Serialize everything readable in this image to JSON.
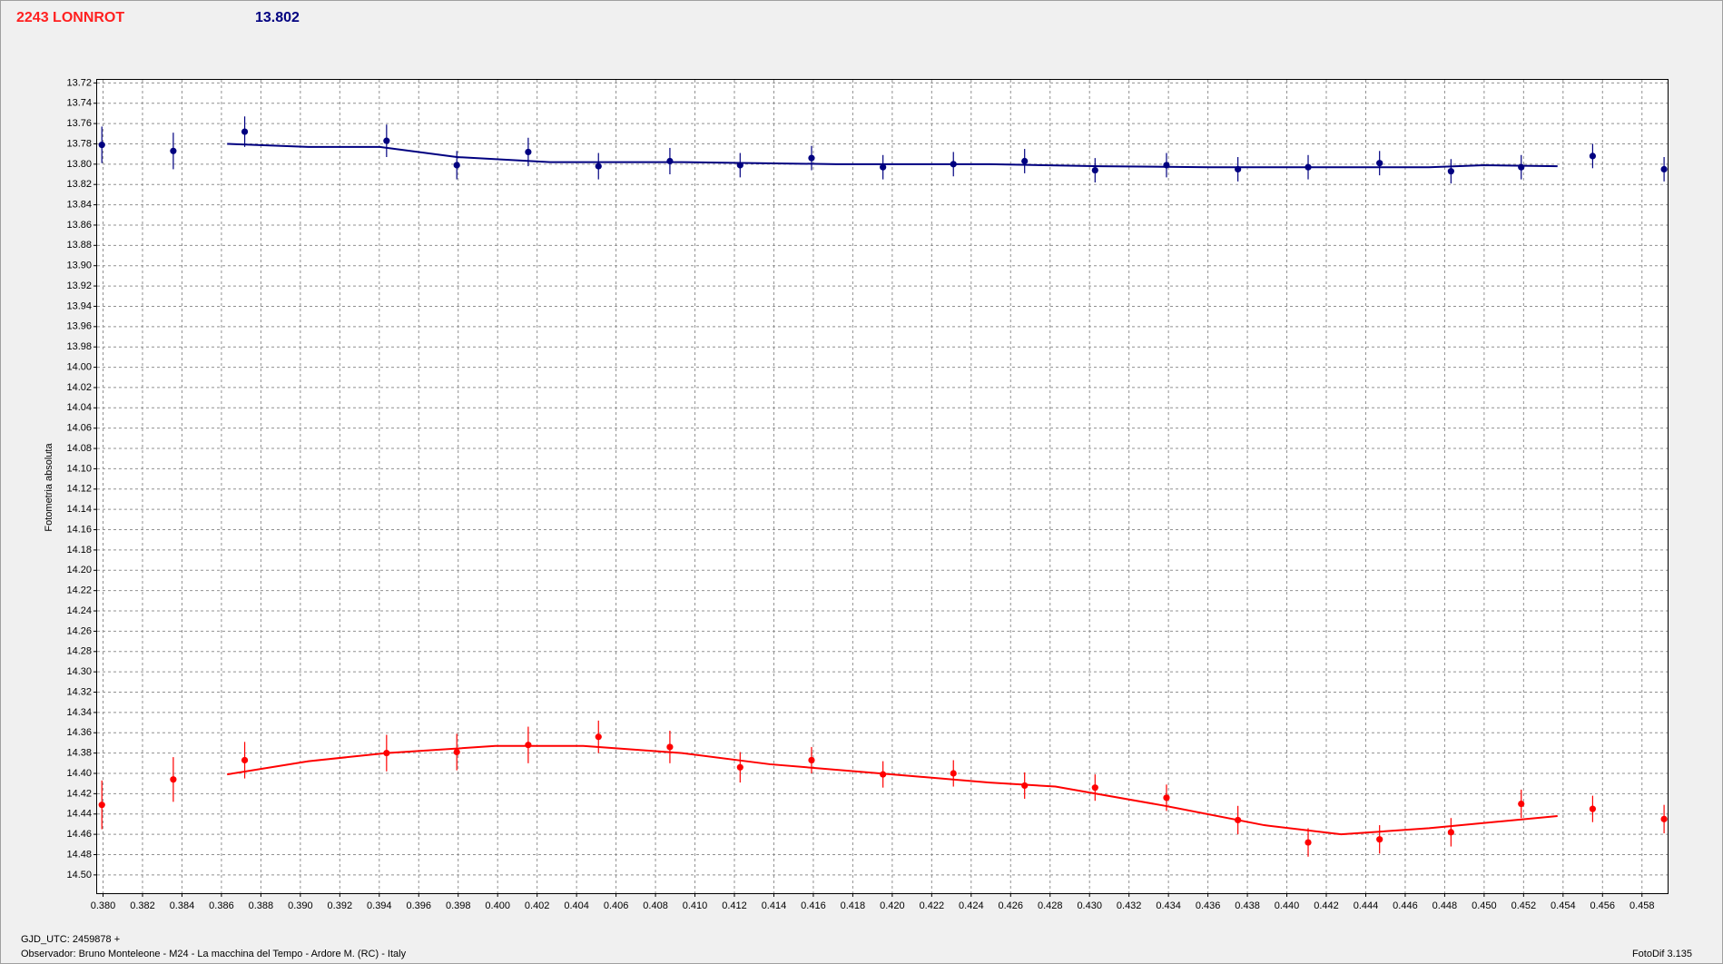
{
  "chart_data": {
    "type": "scatter",
    "title": "2243 LONNROT",
    "subtitle": "13.802",
    "ylabel": "Fotometria absoluta",
    "xlabel": "GJD_UTC: 2459878 +",
    "observer": "Observador: Bruno Monteleone - M24 - La macchina del Tempo - Ardore M. (RC) - Italy",
    "software": "FotoDif 3.135",
    "xlim": [
      0.3797,
      0.4593
    ],
    "ylim": [
      14.518,
      13.717
    ],
    "grid": true,
    "xticks": [
      {
        "value": 0.38,
        "label": "0.380"
      },
      0.382,
      0.384,
      0.386,
      0.388,
      {
        "value": 0.39,
        "label": "0.390"
      },
      0.392,
      0.394,
      0.396,
      0.398,
      {
        "value": 0.4,
        "label": "0.400"
      },
      0.402,
      0.404,
      0.406,
      0.408,
      {
        "value": 0.41,
        "label": "0.410"
      },
      0.412,
      0.414,
      0.416,
      0.418,
      {
        "value": 0.42,
        "label": "0.420"
      },
      0.422,
      0.424,
      0.426,
      0.428,
      {
        "value": 0.43,
        "label": "0.430"
      },
      0.432,
      0.434,
      0.436,
      0.438,
      {
        "value": 0.44,
        "label": "0.440"
      },
      0.442,
      0.444,
      0.446,
      0.448,
      {
        "value": 0.45,
        "label": "0.450"
      },
      0.452,
      0.454,
      0.456,
      0.458
    ],
    "yticks": [
      13.72,
      13.74,
      13.76,
      13.78,
      {
        "value": 13.8,
        "label": "13.80"
      },
      13.82,
      13.84,
      13.86,
      13.88,
      {
        "value": 13.9,
        "label": "13.90"
      },
      13.92,
      13.94,
      13.96,
      13.98,
      {
        "value": 14.0,
        "label": "14.00"
      },
      14.02,
      14.04,
      14.06,
      14.08,
      {
        "value": 14.1,
        "label": "14.10"
      },
      14.12,
      14.14,
      14.16,
      14.18,
      {
        "value": 14.2,
        "label": "14.20"
      },
      14.22,
      14.24,
      14.26,
      14.28,
      {
        "value": 14.3,
        "label": "14.30"
      },
      14.32,
      14.34,
      14.36,
      14.38,
      {
        "value": 14.4,
        "label": "14.40"
      },
      14.42,
      14.44,
      14.46,
      14.48,
      {
        "value": 14.5,
        "label": "14.50"
      }
    ],
    "series": [
      {
        "color": "#000080",
        "x": [
          0.37994,
          0.38356,
          0.38718,
          0.39437,
          0.39793,
          0.40155,
          0.40511,
          0.40873,
          0.41229,
          0.41591,
          0.41953,
          0.4231,
          0.42671,
          0.43028,
          0.4339,
          0.43752,
          0.44108,
          0.4447,
          0.44832,
          0.45188,
          0.4555,
          0.45912
        ],
        "values": [
          13.781,
          13.787,
          13.768,
          13.777,
          13.801,
          13.788,
          13.802,
          13.797,
          13.801,
          13.794,
          13.803,
          13.8,
          13.797,
          13.806,
          13.801,
          13.805,
          13.803,
          13.799,
          13.807,
          13.803,
          13.792,
          13.805
        ],
        "errors": [
          0.018,
          0.018,
          0.015,
          0.016,
          0.014,
          0.014,
          0.013,
          0.013,
          0.012,
          0.012,
          0.012,
          0.012,
          0.012,
          0.012,
          0.012,
          0.012,
          0.012,
          0.012,
          0.012,
          0.012,
          0.012,
          0.012
        ]
      },
      {
        "color": "#ff0000",
        "x": [
          0.37994,
          0.38356,
          0.38718,
          0.39437,
          0.39793,
          0.40155,
          0.40511,
          0.40873,
          0.41229,
          0.41591,
          0.41953,
          0.4231,
          0.42671,
          0.43028,
          0.4339,
          0.43752,
          0.44108,
          0.4447,
          0.44832,
          0.45188,
          0.4555,
          0.45912
        ],
        "values": [
          14.431,
          14.406,
          14.387,
          14.38,
          14.379,
          14.372,
          14.364,
          14.374,
          14.394,
          14.387,
          14.401,
          14.4,
          14.412,
          14.414,
          14.424,
          14.446,
          14.468,
          14.465,
          14.458,
          14.43,
          14.435,
          14.445
        ],
        "errors": [
          0.024,
          0.022,
          0.018,
          0.018,
          0.018,
          0.018,
          0.016,
          0.016,
          0.015,
          0.013,
          0.013,
          0.013,
          0.013,
          0.013,
          0.013,
          0.014,
          0.014,
          0.014,
          0.014,
          0.014,
          0.013,
          0.014
        ]
      }
    ],
    "fits": [
      {
        "color": "#000080",
        "x": [
          0.38629,
          0.39041,
          0.39403,
          0.39793,
          0.40266,
          0.40934,
          0.41714,
          0.42493,
          0.4305,
          0.43607,
          0.44721,
          0.44999,
          0.45372
        ],
        "values": [
          13.78,
          13.783,
          13.783,
          13.793,
          13.798,
          13.798,
          13.8,
          13.8,
          13.802,
          13.803,
          13.803,
          13.801,
          13.802
        ]
      },
      {
        "color": "#ff0000",
        "x": [
          0.38629,
          0.39041,
          0.39437,
          0.39988,
          0.40434,
          0.40934,
          0.4138,
          0.41937,
          0.42493,
          0.42827,
          0.43384,
          0.43885,
          0.44275,
          0.44721,
          0.45372
        ],
        "values": [
          14.401,
          14.388,
          14.38,
          14.373,
          14.373,
          14.38,
          14.391,
          14.4,
          14.409,
          14.413,
          14.432,
          14.451,
          14.46,
          14.454,
          14.442
        ]
      }
    ]
  }
}
